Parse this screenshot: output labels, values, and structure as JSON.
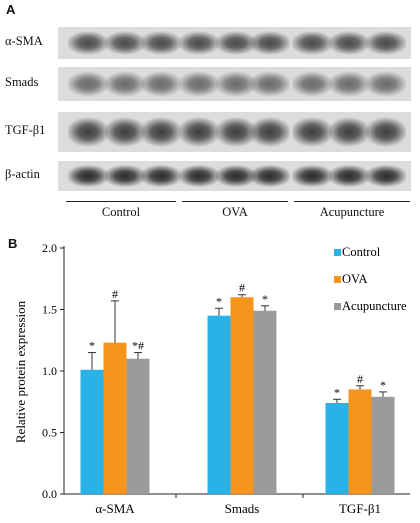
{
  "panel_a": {
    "letter": "A",
    "rows": [
      {
        "label": "α-SMA",
        "color": "#4a4a4a"
      },
      {
        "label": "Smads",
        "color": "#6a6a6a"
      },
      {
        "label": "TGF-β1",
        "color": "#3e3e3e"
      },
      {
        "label": "β-actin",
        "color": "#2a2a2a"
      }
    ],
    "groups": [
      "Control",
      "OVA",
      "Acupuncture"
    ]
  },
  "panel_b": {
    "letter": "B"
  },
  "chart_data": {
    "type": "bar",
    "title": "",
    "xlabel": "",
    "ylabel": "Relative protein expression",
    "ylim": [
      0.0,
      2.0
    ],
    "yticks": [
      "0.0",
      "0.5",
      "1.0",
      "1.5",
      "2.0"
    ],
    "categories": [
      "α-SMA",
      "Smads",
      "TGF-β1"
    ],
    "legend_position": "top-right",
    "series": [
      {
        "name": "Control",
        "color": "#29b2e8",
        "values": [
          1.01,
          1.45,
          0.74
        ],
        "errors": [
          0.14,
          0.06,
          0.03
        ],
        "marks": [
          "*",
          "*",
          "*"
        ]
      },
      {
        "name": "OVA",
        "color": "#f7941d",
        "values": [
          1.23,
          1.6,
          0.85
        ],
        "errors": [
          0.34,
          0.02,
          0.03
        ],
        "marks": [
          "#",
          "#",
          "#"
        ]
      },
      {
        "name": "Acupuncture",
        "color": "#9b9b9b",
        "values": [
          1.1,
          1.49,
          0.79
        ],
        "errors": [
          0.05,
          0.04,
          0.04
        ],
        "marks": [
          "*#",
          "*",
          "*"
        ]
      }
    ]
  }
}
